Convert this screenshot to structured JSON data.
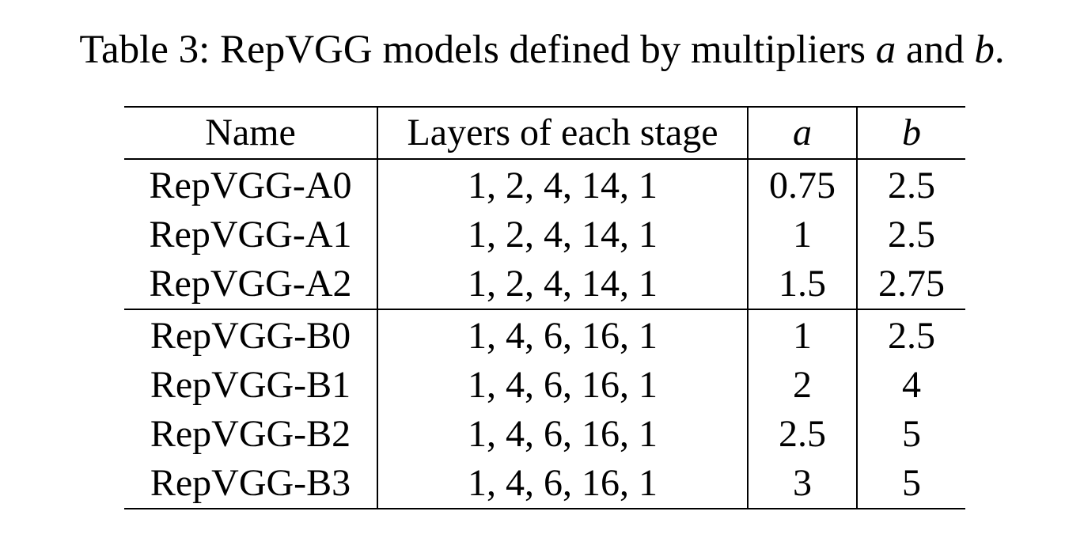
{
  "caption": {
    "prefix": "Table 3: RepVGG models defined by multipliers ",
    "var_a": "a",
    "middle": " and ",
    "var_b": "b",
    "suffix": "."
  },
  "table": {
    "headers": {
      "name": "Name",
      "layers": "Layers of each stage",
      "a": "a",
      "b": "b"
    },
    "group_a": [
      {
        "name": "RepVGG-A0",
        "layers": "1, 2, 4, 14, 1",
        "a": "0.75",
        "b": "2.5"
      },
      {
        "name": "RepVGG-A1",
        "layers": "1, 2, 4, 14, 1",
        "a": "1",
        "b": "2.5"
      },
      {
        "name": "RepVGG-A2",
        "layers": "1, 2, 4, 14, 1",
        "a": "1.5",
        "b": "2.75"
      }
    ],
    "group_b": [
      {
        "name": "RepVGG-B0",
        "layers": "1, 4, 6, 16, 1",
        "a": "1",
        "b": "2.5"
      },
      {
        "name": "RepVGG-B1",
        "layers": "1, 4, 6, 16, 1",
        "a": "2",
        "b": "4"
      },
      {
        "name": "RepVGG-B2",
        "layers": "1, 4, 6, 16, 1",
        "a": "2.5",
        "b": "5"
      },
      {
        "name": "RepVGG-B3",
        "layers": "1, 4, 6, 16, 1",
        "a": "3",
        "b": "5"
      }
    ]
  }
}
